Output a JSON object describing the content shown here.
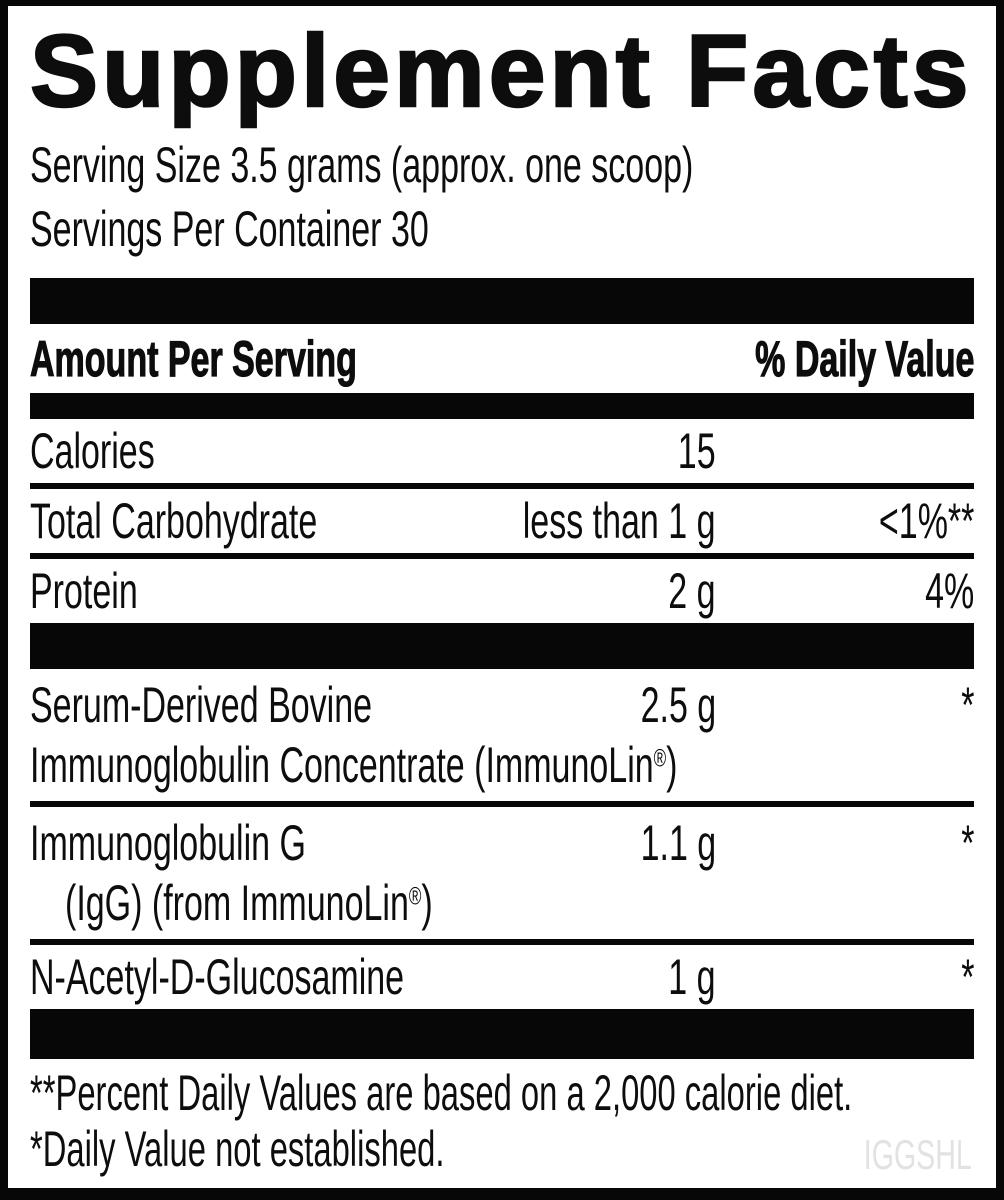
{
  "label": {
    "title": "Supplement Facts",
    "serving_size": "Serving Size 3.5 grams (approx. one scoop)",
    "servings_per_container": "Servings Per Container 30",
    "columns": {
      "amount_header": "Amount Per Serving",
      "daily_value_header": "% Daily Value"
    },
    "rows": [
      {
        "name": "Calories",
        "amount": "15",
        "daily_value": ""
      },
      {
        "name": "Total Carbohydrate",
        "amount": "less than 1 g",
        "daily_value": "<1%**"
      },
      {
        "name": "Protein",
        "amount": "2 g",
        "daily_value": "4%"
      },
      {
        "name": "Serum-Derived Bovine",
        "name_line2": "Immunoglobulin Concentrate (ImmunoLin®)",
        "amount": "2.5 g",
        "daily_value": "*"
      },
      {
        "name": "Immunoglobulin G",
        "name_line2": "(IgG) (from ImmunoLin®)",
        "amount": "1.1 g",
        "daily_value": "*"
      },
      {
        "name": "N-Acetyl-D-Glucosamine",
        "amount": "1 g",
        "daily_value": "*"
      }
    ],
    "footnotes": [
      "**Percent Daily Values are based on a 2,000 calorie diet.",
      "*Daily Value not established."
    ],
    "watermark": "IGGSHL",
    "colors": {
      "text": "#0d0d0d",
      "bar": "#070707",
      "watermark": "#e2e2e2",
      "background": "#ffffff"
    }
  }
}
